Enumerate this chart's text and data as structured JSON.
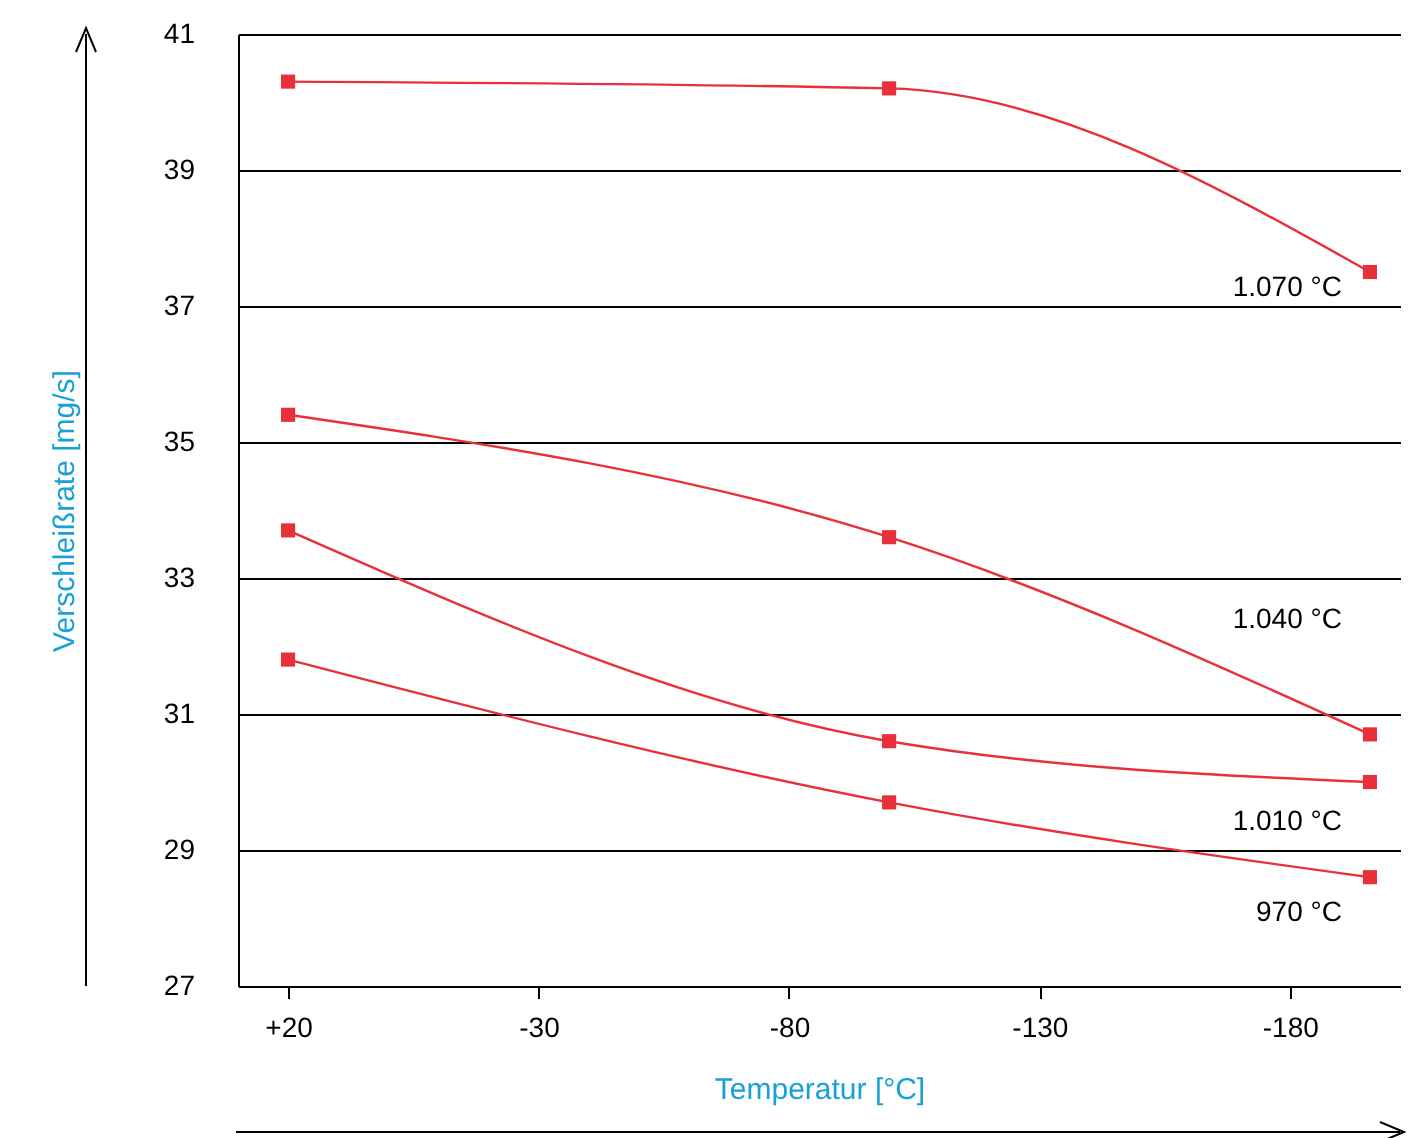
{
  "chart_data": {
    "type": "line",
    "xlabel": "Temperatur [°C]",
    "ylabel": "Verschleißrate [mg/s]",
    "xlim": [
      30,
      -202
    ],
    "xticks": [
      {
        "value": 20,
        "label": "+20"
      },
      -30,
      -80,
      -130,
      -180
    ],
    "ylim": [
      27,
      41
    ],
    "yticks": [
      27,
      29,
      31,
      33,
      35,
      37,
      39,
      41
    ],
    "grid": "y",
    "marker": "square",
    "line_style": "solid",
    "series": [
      {
        "name": "1.070 °C",
        "color": "#e8303a",
        "x": [
          20,
          -100,
          -196
        ],
        "values": [
          40.3,
          40.2,
          37.5
        ]
      },
      {
        "name": "1.040 °C",
        "color": "#e8303a",
        "x": [
          20,
          -100,
          -196
        ],
        "values": [
          35.4,
          33.6,
          30.7
        ]
      },
      {
        "name": "1.010 °C",
        "color": "#e8303a",
        "x": [
          20,
          -100,
          -196
        ],
        "values": [
          33.7,
          30.6,
          30.0
        ]
      },
      {
        "name": "970 °C",
        "color": "#e8303a",
        "x": [
          20,
          -100,
          -196
        ],
        "values": [
          31.8,
          29.7,
          28.6
        ]
      }
    ]
  }
}
